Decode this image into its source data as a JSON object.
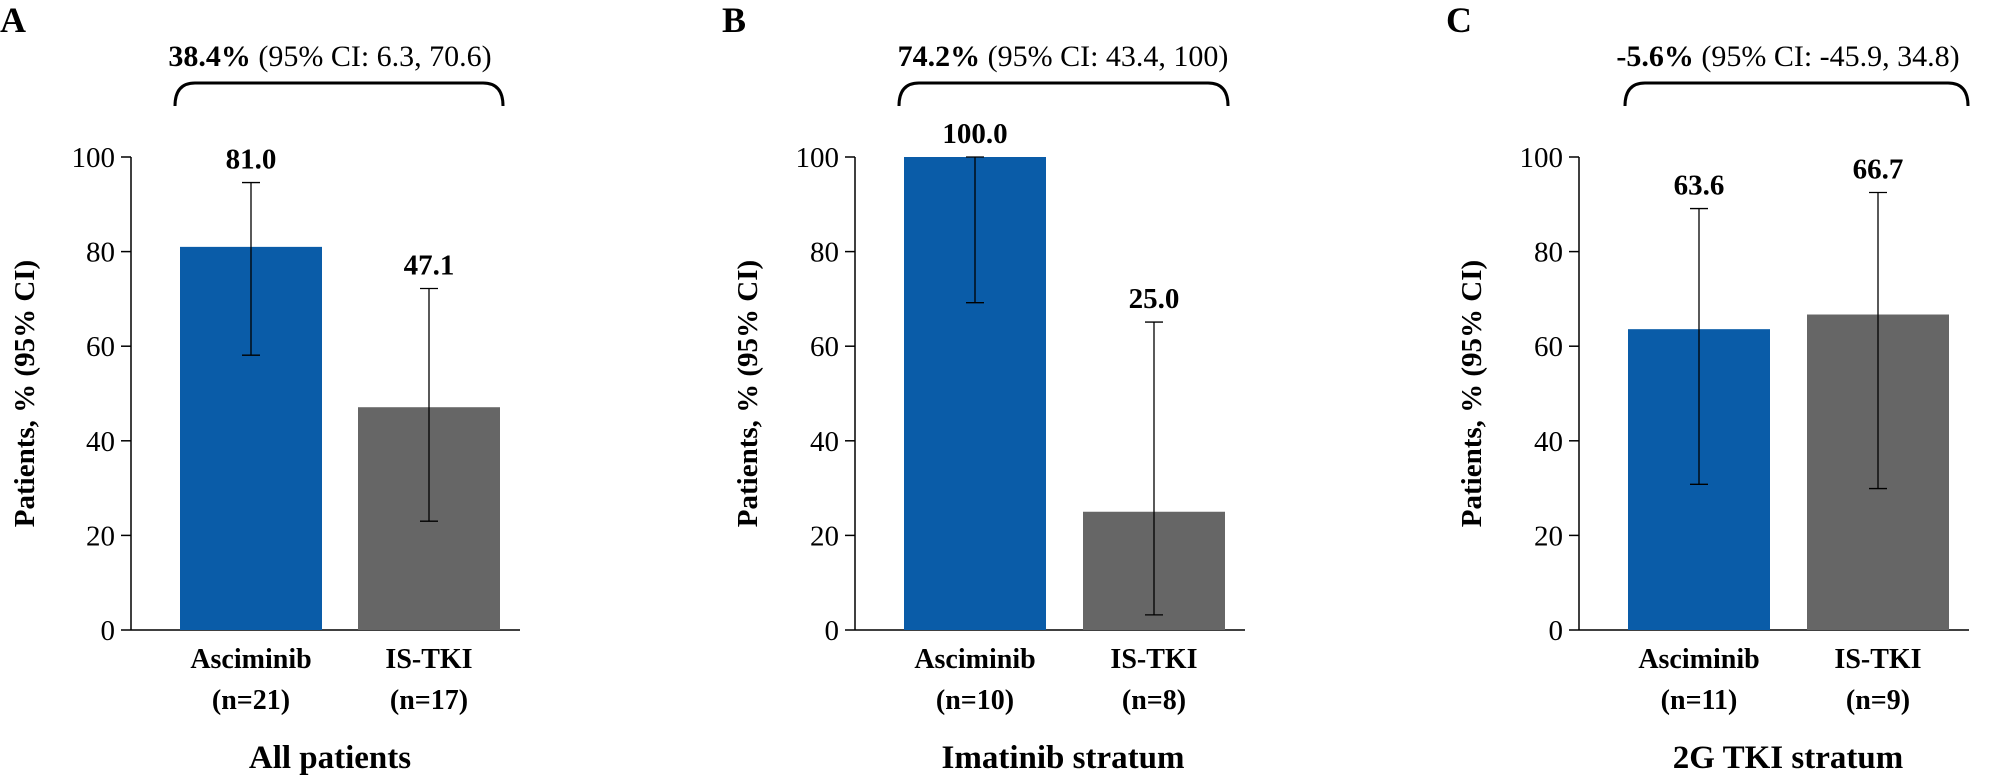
{
  "colors": {
    "asciminib": "#0a5ca8",
    "is_tki": "#666666",
    "axis": "#000000",
    "text": "#000000"
  },
  "chart_data": [
    {
      "type": "bar",
      "panel_label": "A",
      "title": "All patients",
      "diff_value": "38.4%",
      "diff_ci": " (95% CI: 6.3, 70.6)",
      "ylabel": "Patients, % (95% CI)",
      "ylim": [
        0,
        100
      ],
      "yticks": [
        0,
        20,
        40,
        60,
        80,
        100
      ],
      "ytick_labels": [
        "0",
        "20",
        "40",
        "60",
        "80",
        "100"
      ],
      "categories": [
        "Asciminib",
        "IS-TKI"
      ],
      "n_labels": [
        "(n=21)",
        "(n=17)"
      ],
      "values": [
        81.0,
        47.1
      ],
      "value_labels": [
        "81.0",
        "47.1"
      ],
      "ci_low": [
        58.1,
        23.0
      ],
      "ci_high": [
        94.6,
        72.2
      ]
    },
    {
      "type": "bar",
      "panel_label": "B",
      "title": "Imatinib stratum",
      "diff_value": "74.2%",
      "diff_ci": " (95% CI: 43.4, 100)",
      "ylabel": "Patients, % (95% CI)",
      "ylim": [
        0,
        100
      ],
      "yticks": [
        0,
        20,
        40,
        60,
        80,
        100
      ],
      "ytick_labels": [
        "0",
        "20",
        "40",
        "60",
        "80",
        "100"
      ],
      "categories": [
        "Asciminib",
        "IS-TKI"
      ],
      "n_labels": [
        "(n=10)",
        "(n=8)"
      ],
      "values": [
        100.0,
        25.0
      ],
      "value_labels": [
        "100.0",
        "25.0"
      ],
      "ci_low": [
        69.2,
        3.2
      ],
      "ci_high": [
        100.0,
        65.1
      ]
    },
    {
      "type": "bar",
      "panel_label": "C",
      "title": "2G TKI stratum",
      "diff_value": "-5.6%",
      "diff_ci": " (95% CI: -45.9, 34.8)",
      "ylabel": "Patients, % (95% CI)",
      "ylim": [
        0,
        100
      ],
      "yticks": [
        0,
        20,
        40,
        60,
        80,
        100
      ],
      "ytick_labels": [
        "0",
        "20",
        "40",
        "60",
        "80",
        "100"
      ],
      "categories": [
        "Asciminib",
        "IS-TKI"
      ],
      "n_labels": [
        "(n=11)",
        "(n=9)"
      ],
      "values": [
        63.6,
        66.7
      ],
      "value_labels": [
        "63.6",
        "66.7"
      ],
      "ci_low": [
        30.8,
        29.9
      ],
      "ci_high": [
        89.1,
        92.5
      ]
    }
  ]
}
